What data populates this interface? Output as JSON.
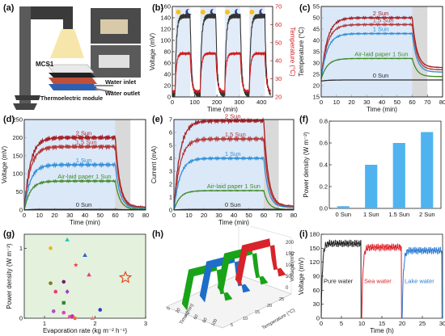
{
  "panels": {
    "a": {
      "label": "(a)",
      "texts": {
        "mcs": "MCS1",
        "te": "Thermoelectric module",
        "inlet": "Water inlet",
        "outlet": "Water outlet"
      }
    },
    "b": {
      "label": "(b)"
    },
    "c": {
      "label": "(c)"
    },
    "d": {
      "label": "(d)"
    },
    "e": {
      "label": "(e)"
    },
    "f": {
      "label": "(f)"
    },
    "g": {
      "label": "(g)"
    },
    "h": {
      "label": "(h)"
    },
    "i": {
      "label": "(i)"
    }
  },
  "colors": {
    "c2": "#a51d22",
    "c15": "#b13a3a",
    "c1": "#2f8fd8",
    "cair": "#3f8a2a",
    "c0": "#2b2b2b",
    "bar": "#4fb3f0",
    "shade_blue": "#cfe0f5",
    "shade_grey": "#b9b9b9"
  },
  "chart_data": [
    {
      "id": "b",
      "type": "line",
      "xlabel": "Time (min)",
      "ylabel": "Voltage (mV)",
      "y2label": "Temperature (°C)",
      "xlim": [
        0,
        450
      ],
      "ylim": [
        0,
        160
      ],
      "y2lim": [
        20,
        70
      ],
      "xticks": [
        0,
        100,
        200,
        300,
        400
      ],
      "yticks": [
        0,
        20,
        40,
        60,
        80,
        100,
        120,
        140,
        160
      ],
      "y2ticks": [
        20,
        30,
        40,
        50,
        60,
        70
      ],
      "icons": [
        "sun",
        "moon",
        "sun",
        "moon",
        "sun",
        "moon",
        "sun",
        "moon"
      ],
      "series": [
        {
          "axis": "y",
          "color": "#333333",
          "on": [
            [
              12,
              80
            ],
            [
              125,
              195
            ],
            [
              235,
              305
            ],
            [
              345,
              415
            ]
          ],
          "high": 143,
          "low": 4
        },
        {
          "axis": "y2",
          "color": "#d11f1f",
          "on": [
            [
              12,
              80
            ],
            [
              125,
              195
            ],
            [
              235,
              305
            ],
            [
              345,
              415
            ]
          ],
          "high": 44,
          "low": 23
        }
      ]
    },
    {
      "id": "c",
      "type": "line",
      "xlabel": "Time (min)",
      "ylabel": "Temperature (°C)",
      "xlim": [
        0,
        80
      ],
      "ylim": [
        15,
        55
      ],
      "xticks": [
        0,
        10,
        20,
        30,
        40,
        50,
        60,
        70,
        80
      ],
      "yticks": [
        15,
        20,
        25,
        30,
        35,
        40,
        45,
        50,
        55
      ],
      "light": [
        0,
        60
      ],
      "series": [
        {
          "name": "2 Sun",
          "color": "#a51d22",
          "start": 23,
          "plateau": 50,
          "end": 28
        },
        {
          "name": "1.5 Sun",
          "color": "#b13a3a",
          "start": 23,
          "plateau": 47,
          "end": 27
        },
        {
          "name": "1 Sun",
          "color": "#2f8fd8",
          "start": 23,
          "plateau": 43,
          "end": 26
        },
        {
          "name": "Air-laid paper 1 Sun",
          "color": "#3f8a2a",
          "start": 23,
          "plateau": 32,
          "end": 24
        },
        {
          "name": "0 Sun",
          "color": "#2b2b2b",
          "start": 22,
          "plateau": 22.5,
          "end": 22.5
        }
      ]
    },
    {
      "id": "d",
      "type": "line",
      "xlabel": "Time (min)",
      "ylabel": "Voltage (mV)",
      "xlim": [
        0,
        80
      ],
      "ylim": [
        0,
        250
      ],
      "xticks": [
        0,
        10,
        20,
        30,
        40,
        50,
        60,
        70,
        80
      ],
      "yticks": [
        0,
        50,
        100,
        150,
        200,
        250
      ],
      "light": [
        0,
        60
      ],
      "series": [
        {
          "name": "2 Sun",
          "color": "#a51d22",
          "start": 0,
          "plateau": 200,
          "end": 8
        },
        {
          "name": "1.5 Sun",
          "color": "#b13a3a",
          "start": 0,
          "plateau": 175,
          "end": 6
        },
        {
          "name": "1 Sun",
          "color": "#2f8fd8",
          "start": 0,
          "plateau": 125,
          "end": 5
        },
        {
          "name": "Air-laid paper 1 Sun",
          "color": "#3f8a2a",
          "start": 0,
          "plateau": 80,
          "end": 2
        },
        {
          "name": "0 Sun",
          "color": "#2b2b2b",
          "start": 0,
          "plateau": 2,
          "end": 1
        }
      ]
    },
    {
      "id": "e",
      "type": "line",
      "xlabel": "Time (min)",
      "ylabel": "Current (mA)",
      "xlim": [
        0,
        80
      ],
      "ylim": [
        0,
        7
      ],
      "xticks": [
        0,
        10,
        20,
        30,
        40,
        50,
        60,
        70,
        80
      ],
      "yticks": [
        0,
        1,
        2,
        3,
        4,
        5,
        6,
        7
      ],
      "light": [
        0,
        60
      ],
      "series": [
        {
          "name": "2 Sun",
          "color": "#a51d22",
          "start": 0,
          "plateau": 6.9,
          "end": 0.3
        },
        {
          "name": "1.5 Sun",
          "color": "#b13a3a",
          "start": 0,
          "plateau": 5.5,
          "end": 0.25
        },
        {
          "name": "1 Sun",
          "color": "#2f8fd8",
          "start": 0,
          "plateau": 4.0,
          "end": 0.2
        },
        {
          "name": "Air-laid paper 1 Sun",
          "color": "#3f8a2a",
          "start": 0,
          "plateau": 1.5,
          "end": 0.05
        },
        {
          "name": "0 Sun",
          "color": "#2b2b2b",
          "start": 0,
          "plateau": 0.05,
          "end": 0.05
        }
      ]
    },
    {
      "id": "f",
      "type": "bar",
      "ylabel": "Power density (W m⁻²)",
      "categories": [
        "0 Sun",
        "1 Sun",
        "1.5 Sun",
        "2 Sun"
      ],
      "values": [
        0.02,
        0.4,
        0.6,
        0.7
      ],
      "ylim": [
        0,
        0.8
      ],
      "yticks": [
        0.0,
        0.2,
        0.4,
        0.6,
        0.8
      ]
    },
    {
      "id": "g",
      "type": "scatter",
      "xlabel": "Evaporation rate (kg m⁻² h⁻¹)",
      "ylabel": "Power density (W m⁻²)",
      "xlim": [
        0.6,
        3.0
      ],
      "ylim": [
        0,
        1.2
      ],
      "xticks": [
        1,
        2,
        3
      ],
      "yticks": [
        0,
        1
      ],
      "points": [
        {
          "x": 1.12,
          "y": 1.0,
          "color": "#e6b81c",
          "shape": "circle"
        },
        {
          "x": 1.45,
          "y": 1.12,
          "color": "#27c2c2",
          "shape": "triangle"
        },
        {
          "x": 1.62,
          "y": 0.76,
          "color": "#e8474f",
          "shape": "star"
        },
        {
          "x": 1.8,
          "y": 0.9,
          "color": "#2e66c7",
          "shape": "triangle"
        },
        {
          "x": 1.88,
          "y": 0.62,
          "color": "#e83b7a",
          "shape": "triangle"
        },
        {
          "x": 1.12,
          "y": 0.5,
          "color": "#7a7a20",
          "shape": "circle"
        },
        {
          "x": 1.38,
          "y": 0.52,
          "color": "#7a1a6e",
          "shape": "circle"
        },
        {
          "x": 1.45,
          "y": 0.38,
          "color": "#a23ec2",
          "shape": "diamond"
        },
        {
          "x": 1.22,
          "y": 0.38,
          "color": "#e83b7a",
          "shape": "circle"
        },
        {
          "x": 1.38,
          "y": 0.22,
          "color": "#2e8a2e",
          "shape": "square"
        },
        {
          "x": 1.18,
          "y": 0.1,
          "color": "#b04ad0",
          "shape": "circle"
        },
        {
          "x": 1.38,
          "y": 0.08,
          "color": "#e83bd0",
          "shape": "circle"
        },
        {
          "x": 1.5,
          "y": 0.02,
          "color": "#f04aa0",
          "shape": "circle"
        },
        {
          "x": 1.55,
          "y": 0.03,
          "color": "#d024c0",
          "shape": "circle"
        },
        {
          "x": 1.6,
          "y": 0.0,
          "color": "#f07030",
          "shape": "circle"
        },
        {
          "x": 1.95,
          "y": 0.0,
          "color": "#f08080",
          "shape": "triangle"
        },
        {
          "x": 2.1,
          "y": 0.12,
          "color": "#2e3fc7",
          "shape": "circle"
        },
        {
          "x": 2.6,
          "y": 0.58,
          "color": "#e24a1a",
          "shape": "bigstar"
        }
      ]
    },
    {
      "id": "h",
      "type": "line",
      "ylabel": "Voltage (mV)",
      "xlabel": "Time (min)",
      "zlabel": "Temperature (°C)",
      "ticks_v": [
        "200",
        "150",
        "100",
        "50",
        "0"
      ],
      "ticks_t": [
        "0",
        "20",
        "40",
        "60",
        "80",
        "100"
      ],
      "ticks_temp": [
        "5",
        "10",
        "15",
        "20",
        "25"
      ],
      "series": [
        {
          "color": "#18a318"
        },
        {
          "color": "#1d6ec9"
        },
        {
          "color": "#18a318"
        },
        {
          "color": "#d8232a"
        }
      ]
    },
    {
      "id": "i",
      "type": "line",
      "xlabel": "Time (h)",
      "ylabel": "Voltage (mV)",
      "xlim": [
        0,
        30
      ],
      "ylim": [
        0,
        180
      ],
      "xticks": [
        0,
        5,
        10,
        15,
        20,
        25,
        30
      ],
      "yticks": [
        0,
        30,
        60,
        90,
        120,
        150,
        180
      ],
      "series": [
        {
          "name": "Pure water",
          "color": "#222222",
          "t": [
            0,
            10
          ],
          "high": 160
        },
        {
          "name": "Sea water",
          "color": "#e0202a",
          "t": [
            10,
            20
          ],
          "high": 152
        },
        {
          "name": "Lake water",
          "color": "#2a7bd4",
          "t": [
            20,
            30
          ],
          "high": 145
        }
      ]
    }
  ]
}
